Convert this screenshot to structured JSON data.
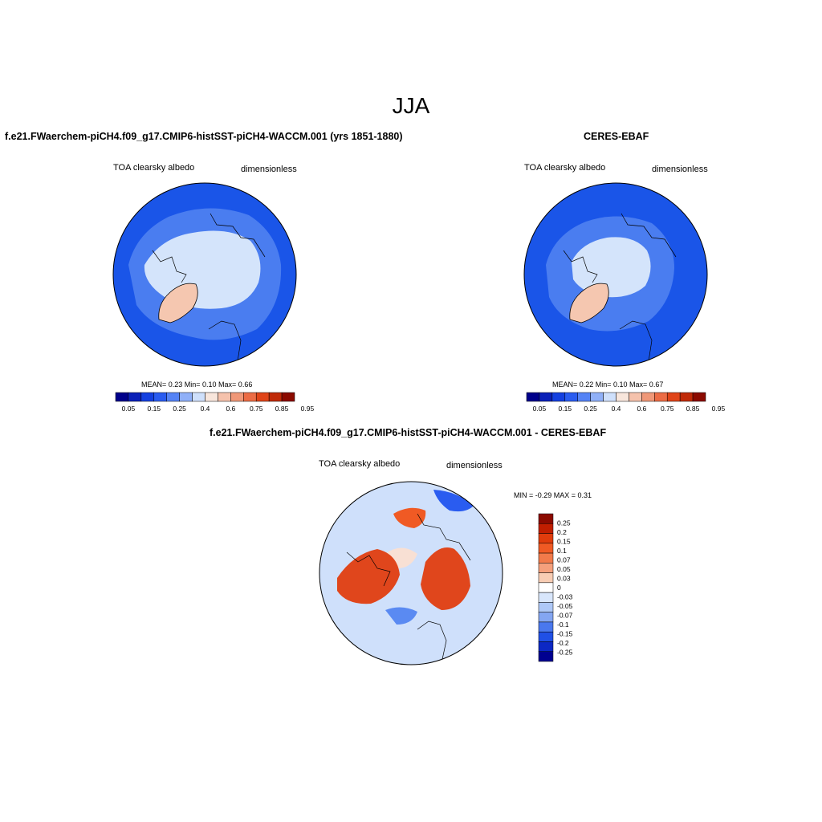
{
  "figure": {
    "title": "JJA"
  },
  "panels": [
    {
      "title": "f.e21.FWaerchem-piCH4.f09_g17.CMIP6-histSST-piCH4-WACCM.001 (yrs 1851-1880)",
      "left_label": "TOA clearsky albedo",
      "right_label": "dimensionless",
      "stats_text": "MEAN=   0.23  Min=    0.10  Max=    0.66",
      "mean": 0.23,
      "min": 0.1,
      "max": 0.66
    },
    {
      "title": "CERES-EBAF",
      "left_label": "TOA clearsky albedo",
      "right_label": "dimensionless",
      "stats_text": "MEAN=   0.22  Min=    0.10  Max=    0.67",
      "mean": 0.22,
      "min": 0.1,
      "max": 0.67
    },
    {
      "title": "f.e21.FWaerchem-piCH4.f09_g17.CMIP6-histSST-piCH4-WACCM.001 - CERES-EBAF",
      "left_label": "TOA clearsky albedo",
      "right_label": "dimensionless",
      "stats_text": "MIN =  -0.29 MAX =   0.31",
      "min": -0.29,
      "max": 0.31
    }
  ],
  "colorbar_horizontal": {
    "tick_labels": [
      "0.05",
      "0.15",
      "0.25",
      "0.4",
      "0.6",
      "0.75",
      "0.85",
      "0.95"
    ],
    "colors": [
      "#00008b",
      "#0b20b8",
      "#1440e0",
      "#2a5cf0",
      "#5583f5",
      "#90b0f8",
      "#cfe0fb",
      "#f8e6dc",
      "#f5c2ac",
      "#f09878",
      "#ec6c45",
      "#e04418",
      "#c02a08",
      "#8b0a00"
    ]
  },
  "colorbar_vertical": {
    "tick_labels": [
      "0.25",
      "0.2",
      "0.15",
      "0.1",
      "0.07",
      "0.05",
      "0.03",
      "0",
      "-0.03",
      "-0.05",
      "-0.07",
      "-0.1",
      "-0.15",
      "-0.2",
      "-0.25"
    ],
    "colors": [
      "#8b0a00",
      "#c01e00",
      "#e03c0c",
      "#f05a24",
      "#f27a4a",
      "#f5a07c",
      "#f8cdb4",
      "#ffffff",
      "#d8e6fb",
      "#aec8f7",
      "#84a6f2",
      "#4a78ee",
      "#2050e6",
      "#0c28c4",
      "#000090"
    ]
  },
  "map_colors": {
    "ocean": "#1a55e8",
    "ocean_light": "#4a7df0",
    "ice": "#d4e4fb",
    "greenland": "#f5c7b0",
    "diff_base": "#cfe0fb",
    "diff_warm": "#e0461c",
    "diff_warm_light": "#f5b89c",
    "diff_cool": "#5a8af2"
  }
}
